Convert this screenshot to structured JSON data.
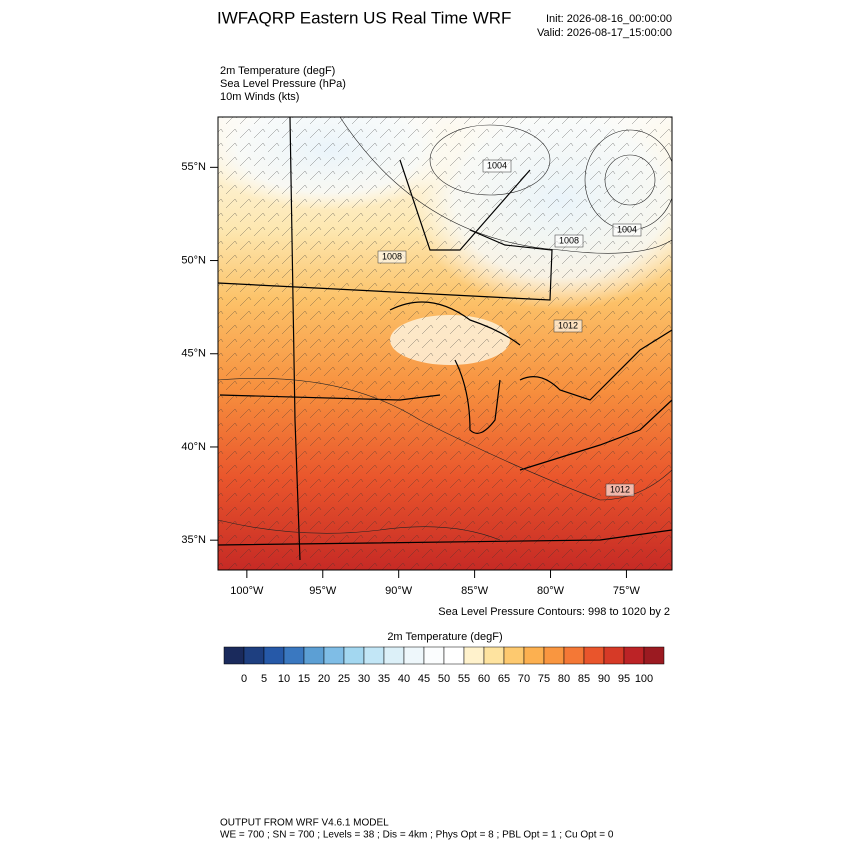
{
  "header": {
    "title": "IWFAQRP Eastern US Real Time WRF",
    "init": "Init: 2026-08-16_00:00:00",
    "valid": "Valid: 2026-08-17_15:00:00"
  },
  "fields": [
    "2m Temperature   (degF)",
    "Sea Level Pressure   (hPa)",
    "10m Winds   (kts)"
  ],
  "map": {
    "latlim": [
      33.4,
      57.7
    ],
    "lonlim": [
      -101.9,
      -72.0
    ],
    "latticks": [
      {
        "value": 35,
        "label": "35°N"
      },
      {
        "value": 40,
        "label": "40°N"
      },
      {
        "value": 45,
        "label": "45°N"
      },
      {
        "value": 50,
        "label": "50°N"
      },
      {
        "value": 55,
        "label": "55°N"
      }
    ],
    "lonticks": [
      {
        "value": -100,
        "label": "100°W"
      },
      {
        "value": -95,
        "label": "95°W"
      },
      {
        "value": -90,
        "label": "90°W"
      },
      {
        "value": -85,
        "label": "85°W"
      },
      {
        "value": -80,
        "label": "80°W"
      },
      {
        "value": -75,
        "label": "75°W"
      }
    ],
    "contour_labels": [
      "1004",
      "1008",
      "1008",
      "1004",
      "1012",
      "1012"
    ],
    "contour_caption": "Sea Level Pressure Contours: 998 to 1020 by 2"
  },
  "colorbar": {
    "title": "2m Temperature  (degF)",
    "colors": [
      "#1a2a5c",
      "#1e3f80",
      "#2659a8",
      "#3a78c0",
      "#5c9fd4",
      "#7fbde6",
      "#a3d7f0",
      "#c2e6f6",
      "#dcf0f8",
      "#eef7fb",
      "#fbfdfe",
      "#ffffff",
      "#fff2cc",
      "#fee39f",
      "#fdc96f",
      "#fcb050",
      "#f99640",
      "#f47836",
      "#e9552c",
      "#d63a27",
      "#bc2326",
      "#9b1a21"
    ],
    "ticks": [
      0,
      5,
      10,
      15,
      20,
      25,
      30,
      35,
      40,
      45,
      50,
      55,
      60,
      65,
      70,
      75,
      80,
      85,
      90,
      95,
      100
    ]
  },
  "footer": [
    "OUTPUT FROM WRF V4.6.1 MODEL",
    "WE = 700 ; SN = 700 ; Levels = 38 ; Dis = 4km ; Phys Opt = 8 ; PBL Opt = 1 ; Cu Opt = 0"
  ]
}
